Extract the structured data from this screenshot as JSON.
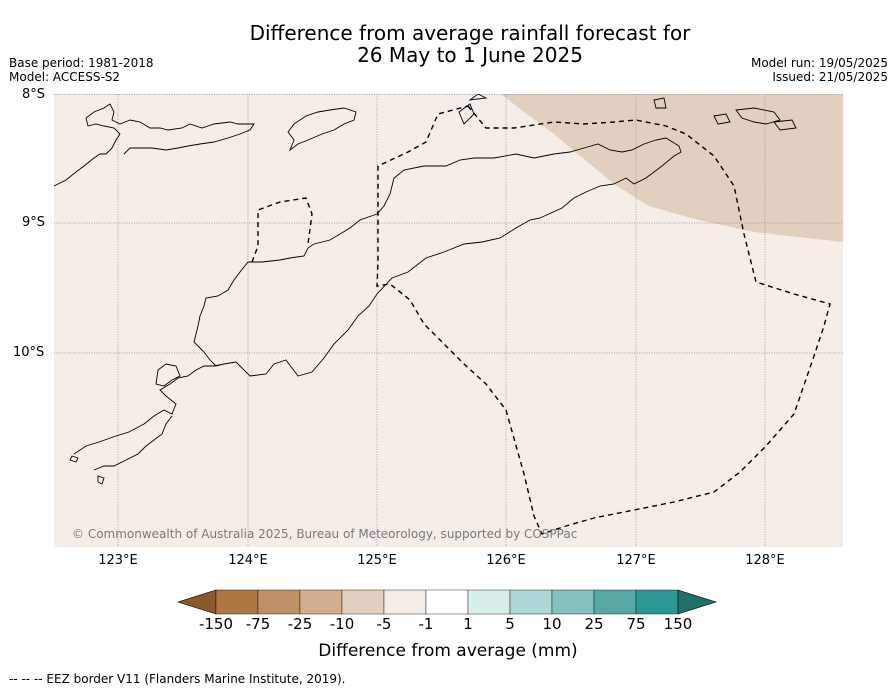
{
  "header": {
    "title_line1": "Difference from average rainfall forecast for",
    "title_line2": "26 May to 1 June 2025",
    "base_period": "Base period: 1981-2018",
    "model": "Model: ACCESS-S2",
    "model_run": "Model run: 19/05/2025",
    "issued": "Issued: 21/05/2025"
  },
  "map": {
    "lat_labels": [
      "8°S",
      "9°S",
      "10°S"
    ],
    "lon_labels": [
      "123°E",
      "124°E",
      "125°E",
      "126°E",
      "127°E",
      "128°E"
    ],
    "copyright": "© Commonwealth of Australia 2025, Bureau of Meteorology, supported by COSPPac",
    "colors": {
      "background_category": "#f4ede8",
      "dry_patch": "#e3cfbd",
      "coast": "#000000",
      "grid": "#888888"
    }
  },
  "colorbar": {
    "title": "Difference from average (mm)",
    "labels": [
      "-150",
      "-75",
      "-25",
      "-10",
      "-5",
      "-1",
      "1",
      "5",
      "10",
      "25",
      "75",
      "150"
    ],
    "colors": [
      "#8a5a2b",
      "#ad7744",
      "#bf9166",
      "#d2ae8f",
      "#e3cfbd",
      "#f4ede8",
      "#ffffff",
      "#d8eeeb",
      "#acd8d5",
      "#82c1be",
      "#58a8a5",
      "#2d9893",
      "#1f706b"
    ]
  },
  "footer": {
    "legend": "-- -- -- EEZ border V11 (Flanders Marine Institute, 2019)."
  }
}
